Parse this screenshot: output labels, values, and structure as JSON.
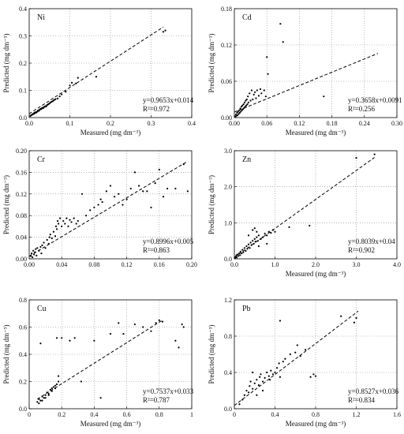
{
  "chart_data": [
    {
      "type": "scatter",
      "element": "Ni",
      "xlabel": "Measured (mg dm⁻³)",
      "ylabel": "Predicted (mg dm⁻³)",
      "xlim": [
        0,
        0.4
      ],
      "ylim": [
        0,
        0.4
      ],
      "xticks": [
        "0.0",
        "0.1",
        "0.2",
        "0.3",
        "0.4"
      ],
      "yticks": [
        "0.0",
        "0.1",
        "0.2",
        "0.3",
        "0.4"
      ],
      "xtickvals": [
        0,
        0.1,
        0.2,
        0.3,
        0.4
      ],
      "ytickvals": [
        0,
        0.1,
        0.2,
        0.3,
        0.4
      ],
      "grid": true,
      "equation": "y=0.9653x+0.014",
      "r2": "R²=0.972",
      "fit": {
        "slope": 0.9653,
        "intercept": 0.014,
        "x_range": [
          0,
          0.33
        ]
      },
      "points": [
        [
          0.003,
          0.006
        ],
        [
          0.005,
          0.009
        ],
        [
          0.007,
          0.01
        ],
        [
          0.008,
          0.012
        ],
        [
          0.01,
          0.013
        ],
        [
          0.011,
          0.015
        ],
        [
          0.012,
          0.014
        ],
        [
          0.013,
          0.018
        ],
        [
          0.015,
          0.017
        ],
        [
          0.016,
          0.02
        ],
        [
          0.018,
          0.019
        ],
        [
          0.02,
          0.022
        ],
        [
          0.021,
          0.024
        ],
        [
          0.022,
          0.026
        ],
        [
          0.024,
          0.025
        ],
        [
          0.025,
          0.028
        ],
        [
          0.027,
          0.03
        ],
        [
          0.028,
          0.032
        ],
        [
          0.03,
          0.031
        ],
        [
          0.031,
          0.034
        ],
        [
          0.033,
          0.036
        ],
        [
          0.035,
          0.035
        ],
        [
          0.036,
          0.038
        ],
        [
          0.038,
          0.04
        ],
        [
          0.04,
          0.042
        ],
        [
          0.042,
          0.041
        ],
        [
          0.044,
          0.046
        ],
        [
          0.046,
          0.048
        ],
        [
          0.048,
          0.05
        ],
        [
          0.05,
          0.052
        ],
        [
          0.052,
          0.055
        ],
        [
          0.055,
          0.058
        ],
        [
          0.058,
          0.06
        ],
        [
          0.06,
          0.063
        ],
        [
          0.063,
          0.066
        ],
        [
          0.065,
          0.068
        ],
        [
          0.07,
          0.07
        ],
        [
          0.075,
          0.078
        ],
        [
          0.08,
          0.085
        ],
        [
          0.09,
          0.095
        ],
        [
          0.1,
          0.118
        ],
        [
          0.105,
          0.128
        ],
        [
          0.115,
          0.125
        ],
        [
          0.12,
          0.146
        ],
        [
          0.165,
          0.15
        ],
        [
          0.33,
          0.315
        ],
        [
          0.335,
          0.32
        ]
      ]
    },
    {
      "type": "scatter",
      "element": "Cd",
      "xlabel": "Measured (mg dm⁻³)",
      "ylabel": "Predicted (mg dm⁻³)",
      "xlim": [
        0,
        0.3
      ],
      "ylim": [
        0,
        0.18
      ],
      "xticks": [
        "0.00",
        "0.06",
        "0.12",
        "0.18",
        "0.24",
        "0.30"
      ],
      "yticks": [
        "0.00",
        "0.06",
        "0.12",
        "0.18"
      ],
      "xtickvals": [
        0,
        0.06,
        0.12,
        0.18,
        0.24,
        0.3
      ],
      "ytickvals": [
        0,
        0.06,
        0.12,
        0.18
      ],
      "grid": true,
      "equation": "y=0.3658x+0.0091",
      "r2": "R²=0.256",
      "fit": {
        "slope": 0.3658,
        "intercept": 0.0091,
        "x_range": [
          0,
          0.265
        ]
      },
      "points": [
        [
          0.002,
          0.002
        ],
        [
          0.003,
          0.005
        ],
        [
          0.004,
          0.003
        ],
        [
          0.005,
          0.008
        ],
        [
          0.006,
          0.004
        ],
        [
          0.007,
          0.01
        ],
        [
          0.008,
          0.006
        ],
        [
          0.009,
          0.012
        ],
        [
          0.01,
          0.008
        ],
        [
          0.011,
          0.015
        ],
        [
          0.012,
          0.01
        ],
        [
          0.013,
          0.018
        ],
        [
          0.014,
          0.012
        ],
        [
          0.015,
          0.02
        ],
        [
          0.016,
          0.014
        ],
        [
          0.017,
          0.022
        ],
        [
          0.018,
          0.016
        ],
        [
          0.019,
          0.025
        ],
        [
          0.02,
          0.018
        ],
        [
          0.021,
          0.028
        ],
        [
          0.022,
          0.02
        ],
        [
          0.023,
          0.03
        ],
        [
          0.024,
          0.022
        ],
        [
          0.025,
          0.035
        ],
        [
          0.026,
          0.025
        ],
        [
          0.028,
          0.04
        ],
        [
          0.03,
          0.028
        ],
        [
          0.032,
          0.045
        ],
        [
          0.034,
          0.03
        ],
        [
          0.036,
          0.038
        ],
        [
          0.038,
          0.042
        ],
        [
          0.04,
          0.032
        ],
        [
          0.042,
          0.045
        ],
        [
          0.045,
          0.036
        ],
        [
          0.048,
          0.047
        ],
        [
          0.05,
          0.04
        ],
        [
          0.055,
          0.045
        ],
        [
          0.058,
          0.035
        ],
        [
          0.06,
          0.1
        ],
        [
          0.062,
          0.072
        ],
        [
          0.085,
          0.155
        ],
        [
          0.09,
          0.125
        ],
        [
          0.165,
          0.035
        ]
      ]
    },
    {
      "type": "scatter",
      "element": "Cr",
      "xlabel": "",
      "ylabel": "Predicted (mg dm⁻³)",
      "xlim": [
        0,
        0.2
      ],
      "ylim": [
        0,
        0.2
      ],
      "xticks": [
        "0.00",
        "0.04",
        "0.08",
        "0.12",
        "0.16",
        "0.20"
      ],
      "yticks": [
        "0.00",
        "0.04",
        "0.08",
        "0.12",
        "0.16",
        "0.20"
      ],
      "xtickvals": [
        0,
        0.04,
        0.08,
        0.12,
        0.16,
        0.2
      ],
      "ytickvals": [
        0,
        0.04,
        0.08,
        0.12,
        0.16,
        0.2
      ],
      "grid": true,
      "equation": "y=0.8996x+0.005",
      "r2": "R²=0.863",
      "fit": {
        "slope": 0.8996,
        "intercept": 0.005,
        "x_range": [
          0,
          0.195
        ]
      },
      "points": [
        [
          0.002,
          0.005
        ],
        [
          0.003,
          0.01
        ],
        [
          0.004,
          0.003
        ],
        [
          0.005,
          0.015
        ],
        [
          0.006,
          0.008
        ],
        [
          0.007,
          0.012
        ],
        [
          0.008,
          0.018
        ],
        [
          0.009,
          0.006
        ],
        [
          0.01,
          0.02
        ],
        [
          0.012,
          0.015
        ],
        [
          0.014,
          0.022
        ],
        [
          0.015,
          0.01
        ],
        [
          0.016,
          0.025
        ],
        [
          0.018,
          0.03
        ],
        [
          0.02,
          0.02
        ],
        [
          0.022,
          0.035
        ],
        [
          0.024,
          0.028
        ],
        [
          0.025,
          0.04
        ],
        [
          0.026,
          0.045
        ],
        [
          0.028,
          0.038
        ],
        [
          0.03,
          0.05
        ],
        [
          0.032,
          0.042
        ],
        [
          0.033,
          0.06
        ],
        [
          0.034,
          0.055
        ],
        [
          0.035,
          0.07
        ],
        [
          0.036,
          0.065
        ],
        [
          0.038,
          0.075
        ],
        [
          0.04,
          0.06
        ],
        [
          0.042,
          0.07
        ],
        [
          0.044,
          0.065
        ],
        [
          0.046,
          0.075
        ],
        [
          0.048,
          0.06
        ],
        [
          0.05,
          0.072
        ],
        [
          0.052,
          0.068
        ],
        [
          0.055,
          0.075
        ],
        [
          0.058,
          0.065
        ],
        [
          0.06,
          0.07
        ],
        [
          0.065,
          0.12
        ],
        [
          0.07,
          0.08
        ],
        [
          0.075,
          0.09
        ],
        [
          0.08,
          0.095
        ],
        [
          0.085,
          0.1
        ],
        [
          0.088,
          0.11
        ],
        [
          0.09,
          0.105
        ],
        [
          0.095,
          0.125
        ],
        [
          0.1,
          0.135
        ],
        [
          0.105,
          0.115
        ],
        [
          0.11,
          0.12
        ],
        [
          0.115,
          0.1
        ],
        [
          0.12,
          0.11
        ],
        [
          0.125,
          0.13
        ],
        [
          0.13,
          0.16
        ],
        [
          0.135,
          0.135
        ],
        [
          0.14,
          0.125
        ],
        [
          0.145,
          0.125
        ],
        [
          0.15,
          0.095
        ],
        [
          0.155,
          0.14
        ],
        [
          0.16,
          0.165
        ],
        [
          0.165,
          0.115
        ],
        [
          0.17,
          0.13
        ],
        [
          0.18,
          0.13
        ],
        [
          0.19,
          0.175
        ],
        [
          0.195,
          0.125
        ]
      ]
    },
    {
      "type": "scatter",
      "element": "Zn",
      "xlabel": "Measured (mg dm⁻³)",
      "ylabel": "Predicted (mg dm⁻³)",
      "xlim": [
        0,
        4.0
      ],
      "ylim": [
        0,
        3.0
      ],
      "xticks": [
        "0.0",
        "1.0",
        "2.0",
        "3.0",
        "4.0"
      ],
      "yticks": [
        "0.0",
        "1.0",
        "2.0",
        "3.0"
      ],
      "xtickvals": [
        0,
        1,
        2,
        3,
        4
      ],
      "ytickvals": [
        0,
        1,
        2,
        3
      ],
      "grid": true,
      "equation": "y=0.8039x+0.04",
      "r2": "R²=0.902",
      "fit": {
        "slope": 0.8039,
        "intercept": 0.04,
        "x_range": [
          0,
          3.45
        ]
      },
      "points": [
        [
          0.02,
          0.03
        ],
        [
          0.04,
          0.06
        ],
        [
          0.05,
          0.1
        ],
        [
          0.06,
          0.04
        ],
        [
          0.08,
          0.12
        ],
        [
          0.1,
          0.08
        ],
        [
          0.12,
          0.15
        ],
        [
          0.14,
          0.1
        ],
        [
          0.15,
          0.2
        ],
        [
          0.18,
          0.15
        ],
        [
          0.2,
          0.25
        ],
        [
          0.22,
          0.18
        ],
        [
          0.25,
          0.3
        ],
        [
          0.28,
          0.22
        ],
        [
          0.3,
          0.35
        ],
        [
          0.32,
          0.28
        ],
        [
          0.35,
          0.4
        ],
        [
          0.38,
          0.3
        ],
        [
          0.4,
          0.45
        ],
        [
          0.42,
          0.38
        ],
        [
          0.45,
          0.5
        ],
        [
          0.48,
          0.42
        ],
        [
          0.5,
          0.55
        ],
        [
          0.52,
          0.48
        ],
        [
          0.55,
          0.6
        ],
        [
          0.58,
          0.5
        ],
        [
          0.6,
          0.65
        ],
        [
          0.65,
          0.55
        ],
        [
          0.7,
          0.6
        ],
        [
          0.75,
          0.7
        ],
        [
          0.8,
          0.65
        ],
        [
          0.85,
          0.75
        ],
        [
          0.9,
          0.72
        ],
        [
          0.95,
          0.8
        ],
        [
          0.45,
          0.8
        ],
        [
          0.5,
          0.85
        ],
        [
          0.55,
          0.75
        ],
        [
          0.35,
          0.65
        ],
        [
          0.6,
          0.35
        ],
        [
          0.8,
          0.42
        ],
        [
          1.0,
          0.75
        ],
        [
          1.35,
          0.88
        ],
        [
          1.85,
          0.92
        ],
        [
          3.0,
          2.8
        ],
        [
          3.45,
          2.9
        ]
      ]
    },
    {
      "type": "scatter",
      "element": "Cu",
      "xlabel": "Measured (mg dm⁻³)",
      "ylabel": "Predicted (mg dm⁻³)",
      "xlim": [
        0,
        1.0
      ],
      "ylim": [
        0,
        0.8
      ],
      "xticks": [
        "0",
        "0.2",
        "0.4",
        "0.6",
        "0.8",
        "1"
      ],
      "yticks": [
        "0.0",
        "0.2",
        "0.4",
        "0.6",
        "0.8"
      ],
      "xtickvals": [
        0,
        0.2,
        0.4,
        0.6,
        0.8,
        1
      ],
      "ytickvals": [
        0,
        0.2,
        0.4,
        0.6,
        0.8
      ],
      "grid": true,
      "equation": "y=0.7537x+0.033",
      "r2": "R²=0.787",
      "fit": {
        "slope": 0.7537,
        "intercept": 0.033,
        "x_range": [
          0.05,
          0.82
        ]
      },
      "points": [
        [
          0.05,
          0.05
        ],
        [
          0.06,
          0.07
        ],
        [
          0.07,
          0.06
        ],
        [
          0.08,
          0.09
        ],
        [
          0.09,
          0.08
        ],
        [
          0.1,
          0.1
        ],
        [
          0.11,
          0.12
        ],
        [
          0.12,
          0.11
        ],
        [
          0.13,
          0.14
        ],
        [
          0.14,
          0.13
        ],
        [
          0.15,
          0.16
        ],
        [
          0.16,
          0.15
        ],
        [
          0.17,
          0.18
        ],
        [
          0.18,
          0.2
        ],
        [
          0.06,
          0.04
        ],
        [
          0.08,
          0.06
        ],
        [
          0.1,
          0.08
        ],
        [
          0.12,
          0.1
        ],
        [
          0.14,
          0.15
        ],
        [
          0.16,
          0.17
        ],
        [
          0.18,
          0.24
        ],
        [
          0.07,
          0.48
        ],
        [
          0.17,
          0.52
        ],
        [
          0.2,
          0.52
        ],
        [
          0.25,
          0.5
        ],
        [
          0.28,
          0.52
        ],
        [
          0.32,
          0.2
        ],
        [
          0.4,
          0.5
        ],
        [
          0.44,
          0.08
        ],
        [
          0.5,
          0.55
        ],
        [
          0.55,
          0.63
        ],
        [
          0.58,
          0.55
        ],
        [
          0.65,
          0.62
        ],
        [
          0.7,
          0.6
        ],
        [
          0.75,
          0.57
        ],
        [
          0.78,
          0.63
        ],
        [
          0.8,
          0.65
        ],
        [
          0.82,
          0.64
        ],
        [
          0.9,
          0.5
        ],
        [
          0.92,
          0.45
        ],
        [
          0.94,
          0.62
        ],
        [
          0.95,
          0.6
        ]
      ]
    },
    {
      "type": "scatter",
      "element": "Pb",
      "xlabel": "Measured (mg dm⁻³)",
      "ylabel": "Predicted (mg dm⁻³)",
      "xlim": [
        0,
        1.6
      ],
      "ylim": [
        0,
        1.2
      ],
      "xticks": [
        "0",
        "0.4",
        "0.8",
        "1.2",
        "1.6"
      ],
      "yticks": [
        "0.0",
        "0.4",
        "0.8",
        "1.2"
      ],
      "xtickvals": [
        0,
        0.4,
        0.8,
        1.2,
        1.6
      ],
      "ytickvals": [
        0,
        0.4,
        0.8,
        1.2
      ],
      "grid": true,
      "equation": "y=0.8527x+0.036",
      "r2": "R²=0.834",
      "fit": {
        "slope": 0.8527,
        "intercept": 0.036,
        "x_range": [
          0,
          1.22
        ]
      },
      "points": [
        [
          0.05,
          0.05
        ],
        [
          0.08,
          0.1
        ],
        [
          0.1,
          0.15
        ],
        [
          0.12,
          0.2
        ],
        [
          0.14,
          0.18
        ],
        [
          0.15,
          0.25
        ],
        [
          0.16,
          0.3
        ],
        [
          0.18,
          0.22
        ],
        [
          0.2,
          0.28
        ],
        [
          0.22,
          0.32
        ],
        [
          0.24,
          0.26
        ],
        [
          0.25,
          0.35
        ],
        [
          0.26,
          0.38
        ],
        [
          0.28,
          0.3
        ],
        [
          0.3,
          0.34
        ],
        [
          0.32,
          0.4
        ],
        [
          0.34,
          0.36
        ],
        [
          0.35,
          0.32
        ],
        [
          0.36,
          0.42
        ],
        [
          0.38,
          0.38
        ],
        [
          0.4,
          0.4
        ],
        [
          0.42,
          0.45
        ],
        [
          0.44,
          0.5
        ],
        [
          0.45,
          0.35
        ],
        [
          0.48,
          0.52
        ],
        [
          0.5,
          0.55
        ],
        [
          0.55,
          0.6
        ],
        [
          0.6,
          0.62
        ],
        [
          0.62,
          0.7
        ],
        [
          0.65,
          0.58
        ],
        [
          0.7,
          0.65
        ],
        [
          0.45,
          0.97
        ],
        [
          0.75,
          0.35
        ],
        [
          0.78,
          0.38
        ],
        [
          0.8,
          0.36
        ],
        [
          1.05,
          1.02
        ],
        [
          1.18,
          0.95
        ],
        [
          1.2,
          1.0
        ],
        [
          0.18,
          0.4
        ],
        [
          0.22,
          0.15
        ],
        [
          0.28,
          0.2
        ]
      ]
    }
  ]
}
